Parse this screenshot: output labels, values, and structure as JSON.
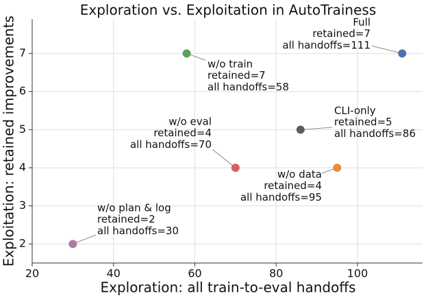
{
  "chart_data": {
    "type": "scatter",
    "title": "Exploration vs. Exploitation in AutoTrainess",
    "x_label": "Exploration: all train-to-eval handoffs",
    "y_label": "Exploitation: retained improvements",
    "x": [
      111,
      58,
      86,
      70,
      95,
      30
    ],
    "values": [
      7,
      7,
      5,
      4,
      4,
      2
    ],
    "colors": [
      "#4c72b0",
      "#5f9e58",
      "#5a5d61",
      "#d65f5f",
      "#e88c3a",
      "#b07aa1"
    ],
    "annotations": [
      [
        "Full",
        "retained=7",
        "all handoffs=111"
      ],
      [
        "w/o train",
        "retained=7",
        "all handoffs=58"
      ],
      [
        "CLI-only",
        "retained=5",
        "all handoffs=86"
      ],
      [
        "w/o eval",
        "retained=4",
        "all handoffs=70"
      ],
      [
        "w/o data",
        "retained=4",
        "all handoffs=95"
      ],
      [
        "w/o plan & log",
        "retained=2",
        "all handoffs=30"
      ]
    ],
    "xlim": [
      20,
      116
    ],
    "ylim": [
      1.5,
      7.9
    ],
    "xticks": [
      20,
      40,
      60,
      80,
      100
    ],
    "yticks": [
      2,
      3,
      4,
      5,
      6,
      7
    ],
    "grid": true
  }
}
